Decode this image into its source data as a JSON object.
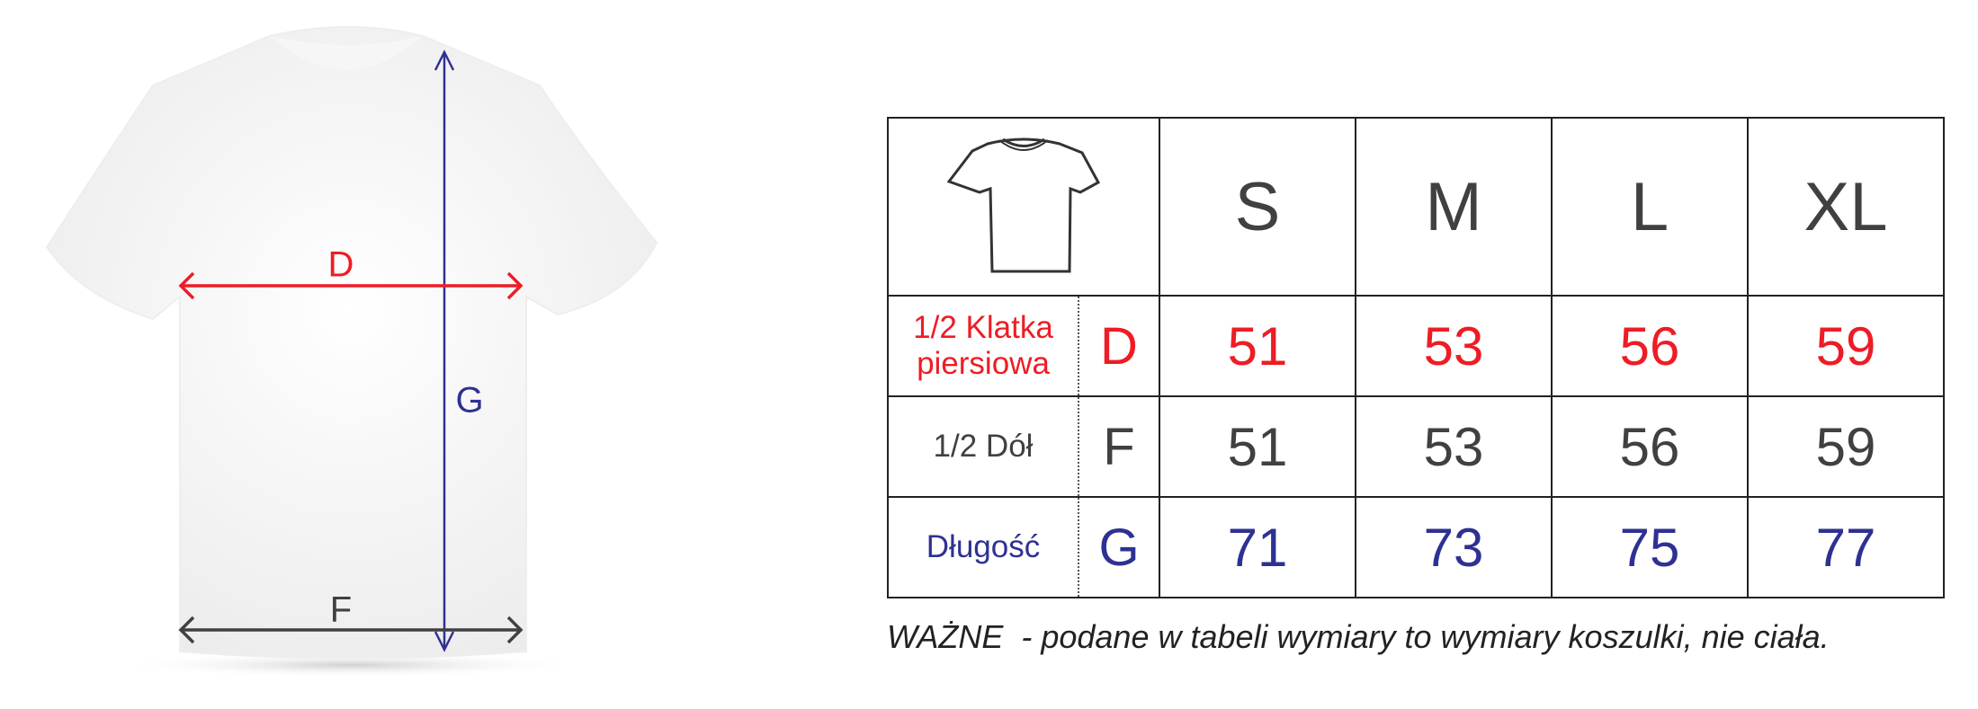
{
  "colors": {
    "chest": "#ee1c25",
    "bottom": "#404040",
    "length": "#2e3192"
  },
  "diagram": {
    "labels": {
      "chest": "D",
      "length": "G",
      "bottom": "F"
    },
    "icon": "t-shirt-illustration"
  },
  "table": {
    "header_icon": "t-shirt-outline-icon",
    "sizes": [
      "S",
      "M",
      "L",
      "XL"
    ],
    "rows": [
      {
        "name_line1": "1/2 Klatka",
        "name_line2": "piersiowa",
        "letter": "D",
        "values": [
          "51",
          "53",
          "56",
          "59"
        ]
      },
      {
        "name_line1": "1/2 Dół",
        "letter": "F",
        "values": [
          "51",
          "53",
          "56",
          "59"
        ]
      },
      {
        "name_line1": "Długość",
        "letter": "G",
        "values": [
          "71",
          "73",
          "75",
          "77"
        ]
      }
    ]
  },
  "note": "WAŻNE  - podane w tabeli wymiary to wymiary koszulki, nie ciała."
}
